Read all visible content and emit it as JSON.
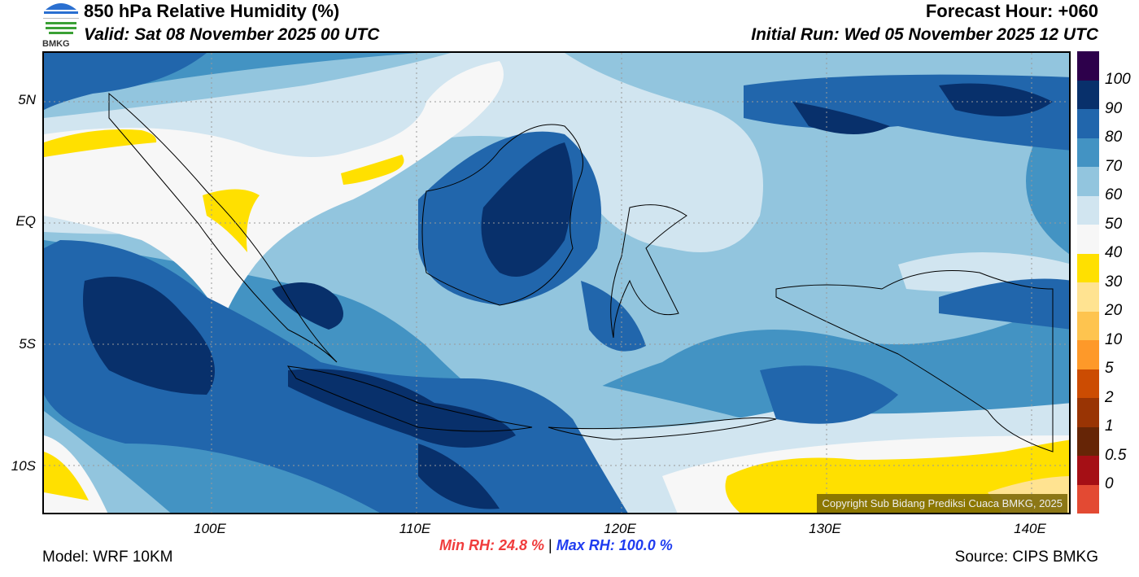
{
  "header": {
    "title": "850 hPa Relative Humidity (%)",
    "valid": "Valid: Sat 08 November 2025 00 UTC",
    "forecast_hour": "Forecast Hour: +060",
    "initial_run": "Initial Run: Wed 05 November 2025 12 UTC",
    "logo_text": "BMKG"
  },
  "axes": {
    "lat_ticks": [
      "5N",
      "EQ",
      "5S",
      "10S"
    ],
    "lon_ticks": [
      "100E",
      "110E",
      "120E",
      "130E",
      "140E"
    ]
  },
  "colorbar": {
    "labels": [
      "100",
      "90",
      "80",
      "70",
      "60",
      "50",
      "40",
      "30",
      "20",
      "10",
      "5",
      "2",
      "1",
      "0.5",
      "0"
    ],
    "colors": [
      "#2d004b",
      "#08306b",
      "#2166ac",
      "#4393c3",
      "#92c5de",
      "#d1e5f0",
      "#f7f7f7",
      "#ffe000",
      "#ffe391",
      "#fec44f",
      "#fe9929",
      "#cc4c02",
      "#993404",
      "#662506",
      "#a50f15",
      "#e34a33"
    ]
  },
  "map": {
    "copyright": "Copyright Sub Bidang Prediksi Cuaca BMKG, 2025"
  },
  "footer": {
    "model": "Model: WRF 10KM",
    "min_rh": "Min RH:  24.8 %",
    "separator": "|",
    "max_rh": "Max RH: 100.0 %",
    "source": "Source: CIPS BMKG",
    "min_color": "#f03c3c",
    "max_color": "#1f3cf0"
  }
}
